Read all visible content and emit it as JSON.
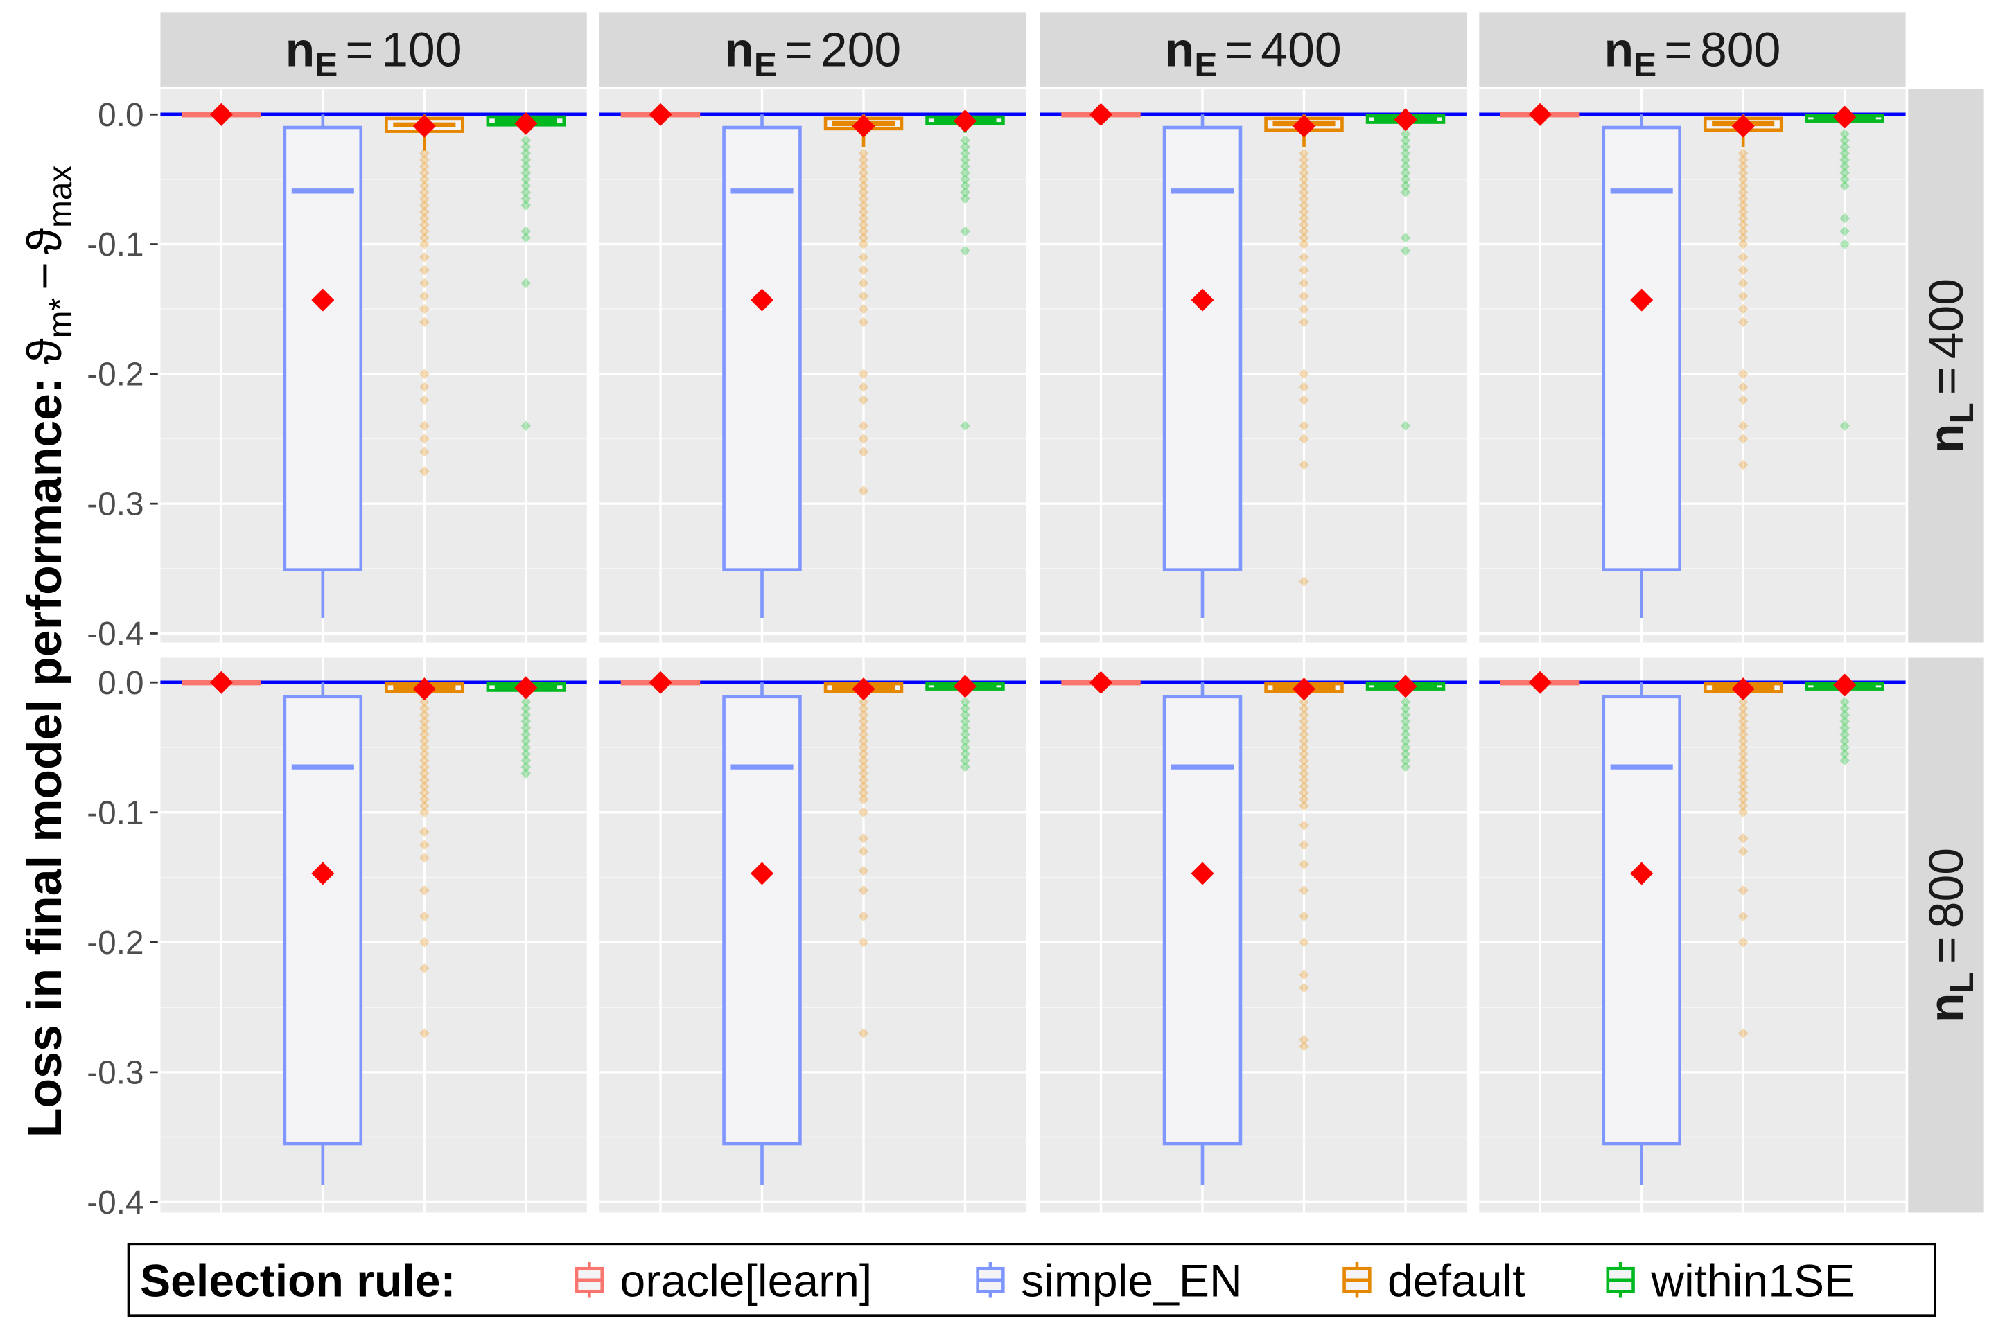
{
  "chart_data": {
    "type": "box",
    "y_label": "Loss in final model performance:",
    "y_label_terms": [
      {
        "symbol": "ϑ",
        "sub": "m*"
      },
      {
        "symbol": "ϑ",
        "sub": "max"
      }
    ],
    "y_label_operator": "−",
    "facet_operator": "=",
    "col_var": {
      "symbol": "n",
      "sub": "E"
    },
    "row_var": {
      "symbol": "n",
      "sub": "L"
    },
    "cols": [
      "100",
      "200",
      "400",
      "800"
    ],
    "rows": [
      {
        "label": "400",
        "ylim": [
          -0.407,
          0.0196
        ]
      },
      {
        "label": "800",
        "ylim": [
          -0.408,
          0.019
        ]
      }
    ],
    "yticks": [
      {
        "value": 0,
        "label": "0.0"
      },
      -0.1,
      -0.2,
      -0.3,
      -0.4
    ],
    "grid": true,
    "hline": {
      "value": 0,
      "color": "#0000FF"
    },
    "mean_color": "#FF0000",
    "legend_title": "Selection rule:",
    "legend_position": "bottom",
    "series": [
      {
        "name": "oracle[learn]",
        "color": "#F8766D"
      },
      {
        "name": "simple_EN",
        "color": "#7F96FF"
      },
      {
        "name": "default",
        "color": "#E58700"
      },
      {
        "name": "within1SE",
        "color": "#00B81F"
      }
    ],
    "panels": [
      [
        [
          {
            "low": -0.002,
            "q1": -0.001,
            "median": 0,
            "q3": 0.001,
            "high": 0.002,
            "mean": 0,
            "outliers": []
          },
          {
            "low": -0.388,
            "q1": -0.351,
            "median": -0.059,
            "q3": -0.01,
            "high": 0,
            "mean": -0.143,
            "outliers": []
          },
          {
            "low": -0.028,
            "q1": -0.013,
            "median": -0.008,
            "q3": -0.003,
            "high": 0,
            "mean": -0.009,
            "outliers": [
              -0.03,
              -0.035,
              -0.04,
              -0.045,
              -0.05,
              -0.055,
              -0.06,
              -0.065,
              -0.07,
              -0.075,
              -0.08,
              -0.085,
              -0.09,
              -0.095,
              -0.1,
              -0.11,
              -0.12,
              -0.13,
              -0.14,
              -0.15,
              -0.16,
              -0.2,
              -0.21,
              -0.22,
              -0.24,
              -0.25,
              -0.26,
              -0.275
            ]
          },
          {
            "low": -0.015,
            "q1": -0.008,
            "median": -0.005,
            "q3": -0.002,
            "high": 0,
            "mean": -0.007,
            "outliers": [
              -0.02,
              -0.025,
              -0.03,
              -0.035,
              -0.04,
              -0.045,
              -0.05,
              -0.055,
              -0.06,
              -0.065,
              -0.07,
              -0.09,
              -0.095,
              -0.13,
              -0.24
            ]
          }
        ],
        [
          {
            "low": -0.002,
            "q1": -0.001,
            "median": 0,
            "q3": 0.001,
            "high": 0.002,
            "mean": 0,
            "outliers": []
          },
          {
            "low": -0.388,
            "q1": -0.351,
            "median": -0.059,
            "q3": -0.01,
            "high": 0,
            "mean": -0.143,
            "outliers": []
          },
          {
            "low": -0.025,
            "q1": -0.011,
            "median": -0.007,
            "q3": -0.003,
            "high": 0,
            "mean": -0.009,
            "outliers": [
              -0.03,
              -0.035,
              -0.04,
              -0.045,
              -0.05,
              -0.055,
              -0.06,
              -0.065,
              -0.07,
              -0.075,
              -0.08,
              -0.085,
              -0.09,
              -0.095,
              -0.1,
              -0.11,
              -0.12,
              -0.13,
              -0.14,
              -0.15,
              -0.16,
              -0.2,
              -0.21,
              -0.22,
              -0.24,
              -0.25,
              -0.26,
              -0.29
            ]
          },
          {
            "low": -0.014,
            "q1": -0.007,
            "median": -0.004,
            "q3": -0.002,
            "high": 0,
            "mean": -0.005,
            "outliers": [
              -0.02,
              -0.025,
              -0.03,
              -0.035,
              -0.04,
              -0.045,
              -0.05,
              -0.055,
              -0.06,
              -0.065,
              -0.09,
              -0.105,
              -0.24
            ]
          }
        ],
        [
          {
            "low": -0.002,
            "q1": -0.001,
            "median": 0,
            "q3": 0.001,
            "high": 0.002,
            "mean": 0,
            "outliers": []
          },
          {
            "low": -0.388,
            "q1": -0.351,
            "median": -0.059,
            "q3": -0.01,
            "high": 0,
            "mean": -0.143,
            "outliers": []
          },
          {
            "low": -0.025,
            "q1": -0.012,
            "median": -0.007,
            "q3": -0.003,
            "high": 0,
            "mean": -0.009,
            "outliers": [
              -0.03,
              -0.035,
              -0.04,
              -0.045,
              -0.05,
              -0.055,
              -0.06,
              -0.065,
              -0.07,
              -0.075,
              -0.08,
              -0.085,
              -0.09,
              -0.095,
              -0.1,
              -0.11,
              -0.12,
              -0.13,
              -0.14,
              -0.15,
              -0.16,
              -0.2,
              -0.21,
              -0.22,
              -0.24,
              -0.25,
              -0.27,
              -0.36
            ]
          },
          {
            "low": -0.012,
            "q1": -0.006,
            "median": -0.003,
            "q3": -0.001,
            "high": 0,
            "mean": -0.004,
            "outliers": [
              -0.015,
              -0.02,
              -0.025,
              -0.03,
              -0.035,
              -0.04,
              -0.045,
              -0.05,
              -0.055,
              -0.06,
              -0.095,
              -0.105,
              -0.24
            ]
          }
        ],
        [
          {
            "low": -0.002,
            "q1": -0.001,
            "median": 0,
            "q3": 0.001,
            "high": 0.002,
            "mean": 0,
            "outliers": []
          },
          {
            "low": -0.388,
            "q1": -0.351,
            "median": -0.059,
            "q3": -0.01,
            "high": 0,
            "mean": -0.143,
            "outliers": []
          },
          {
            "low": -0.025,
            "q1": -0.012,
            "median": -0.007,
            "q3": -0.003,
            "high": 0,
            "mean": -0.009,
            "outliers": [
              -0.03,
              -0.035,
              -0.04,
              -0.045,
              -0.05,
              -0.055,
              -0.06,
              -0.065,
              -0.07,
              -0.075,
              -0.08,
              -0.085,
              -0.09,
              -0.095,
              -0.1,
              -0.11,
              -0.12,
              -0.13,
              -0.14,
              -0.15,
              -0.16,
              -0.2,
              -0.21,
              -0.22,
              -0.24,
              -0.25,
              -0.27
            ]
          },
          {
            "low": -0.01,
            "q1": -0.005,
            "median": -0.002,
            "q3": -0.001,
            "high": 0,
            "mean": -0.002,
            "outliers": [
              -0.015,
              -0.02,
              -0.025,
              -0.03,
              -0.035,
              -0.04,
              -0.045,
              -0.05,
              -0.055,
              -0.08,
              -0.09,
              -0.1,
              -0.24
            ]
          }
        ]
      ],
      [
        [
          {
            "low": -0.002,
            "q1": -0.001,
            "median": 0,
            "q3": 0.001,
            "high": 0.002,
            "mean": 0,
            "outliers": []
          },
          {
            "low": -0.387,
            "q1": -0.355,
            "median": -0.065,
            "q3": -0.011,
            "high": 0,
            "mean": -0.147,
            "outliers": []
          },
          {
            "low": -0.012,
            "q1": -0.007,
            "median": -0.004,
            "q3": -0.001,
            "high": 0,
            "mean": -0.005,
            "outliers": [
              -0.015,
              -0.02,
              -0.025,
              -0.03,
              -0.035,
              -0.04,
              -0.045,
              -0.05,
              -0.055,
              -0.06,
              -0.065,
              -0.07,
              -0.075,
              -0.08,
              -0.085,
              -0.09,
              -0.095,
              -0.1,
              -0.115,
              -0.125,
              -0.135,
              -0.16,
              -0.18,
              -0.2,
              -0.22,
              -0.27
            ]
          },
          {
            "low": -0.011,
            "q1": -0.006,
            "median": -0.004,
            "q3": -0.001,
            "high": 0,
            "mean": -0.004,
            "outliers": [
              -0.015,
              -0.02,
              -0.025,
              -0.03,
              -0.035,
              -0.04,
              -0.045,
              -0.05,
              -0.055,
              -0.06,
              -0.065,
              -0.07
            ]
          }
        ],
        [
          {
            "low": -0.002,
            "q1": -0.001,
            "median": 0,
            "q3": 0.001,
            "high": 0.002,
            "mean": 0,
            "outliers": []
          },
          {
            "low": -0.387,
            "q1": -0.355,
            "median": -0.065,
            "q3": -0.011,
            "high": 0,
            "mean": -0.147,
            "outliers": []
          },
          {
            "low": -0.012,
            "q1": -0.007,
            "median": -0.004,
            "q3": -0.001,
            "high": 0,
            "mean": -0.005,
            "outliers": [
              -0.015,
              -0.02,
              -0.025,
              -0.03,
              -0.035,
              -0.04,
              -0.045,
              -0.05,
              -0.055,
              -0.06,
              -0.065,
              -0.07,
              -0.075,
              -0.08,
              -0.085,
              -0.09,
              -0.1,
              -0.12,
              -0.13,
              -0.145,
              -0.16,
              -0.18,
              -0.2,
              -0.27
            ]
          },
          {
            "low": -0.01,
            "q1": -0.005,
            "median": -0.003,
            "q3": -0.001,
            "high": 0,
            "mean": -0.003,
            "outliers": [
              -0.015,
              -0.02,
              -0.025,
              -0.03,
              -0.035,
              -0.04,
              -0.045,
              -0.05,
              -0.055,
              -0.06,
              -0.065
            ]
          }
        ],
        [
          {
            "low": -0.002,
            "q1": -0.001,
            "median": 0,
            "q3": 0.001,
            "high": 0.002,
            "mean": 0,
            "outliers": []
          },
          {
            "low": -0.387,
            "q1": -0.355,
            "median": -0.065,
            "q3": -0.011,
            "high": 0,
            "mean": -0.147,
            "outliers": []
          },
          {
            "low": -0.012,
            "q1": -0.007,
            "median": -0.004,
            "q3": -0.001,
            "high": 0,
            "mean": -0.005,
            "outliers": [
              -0.015,
              -0.02,
              -0.025,
              -0.03,
              -0.035,
              -0.04,
              -0.045,
              -0.05,
              -0.055,
              -0.06,
              -0.065,
              -0.07,
              -0.075,
              -0.08,
              -0.085,
              -0.09,
              -0.095,
              -0.11,
              -0.125,
              -0.14,
              -0.16,
              -0.18,
              -0.2,
              -0.225,
              -0.235,
              -0.275,
              -0.28
            ]
          },
          {
            "low": -0.01,
            "q1": -0.005,
            "median": -0.002,
            "q3": -0.001,
            "high": 0,
            "mean": -0.003,
            "outliers": [
              -0.015,
              -0.02,
              -0.025,
              -0.03,
              -0.035,
              -0.04,
              -0.045,
              -0.05,
              -0.055,
              -0.06,
              -0.065
            ]
          }
        ],
        [
          {
            "low": -0.002,
            "q1": -0.001,
            "median": 0,
            "q3": 0.001,
            "high": 0.002,
            "mean": 0,
            "outliers": []
          },
          {
            "low": -0.387,
            "q1": -0.355,
            "median": -0.065,
            "q3": -0.011,
            "high": 0,
            "mean": -0.147,
            "outliers": []
          },
          {
            "low": -0.012,
            "q1": -0.007,
            "median": -0.004,
            "q3": -0.001,
            "high": 0,
            "mean": -0.005,
            "outliers": [
              -0.015,
              -0.02,
              -0.025,
              -0.03,
              -0.035,
              -0.04,
              -0.045,
              -0.05,
              -0.055,
              -0.06,
              -0.065,
              -0.07,
              -0.075,
              -0.08,
              -0.085,
              -0.09,
              -0.095,
              -0.1,
              -0.12,
              -0.13,
              -0.16,
              -0.18,
              -0.2,
              -0.27
            ]
          },
          {
            "low": -0.009,
            "q1": -0.005,
            "median": -0.002,
            "q3": -0.001,
            "high": 0,
            "mean": -0.002,
            "outliers": [
              -0.015,
              -0.02,
              -0.025,
              -0.03,
              -0.035,
              -0.04,
              -0.045,
              -0.05,
              -0.055,
              -0.06
            ]
          }
        ]
      ]
    ]
  }
}
